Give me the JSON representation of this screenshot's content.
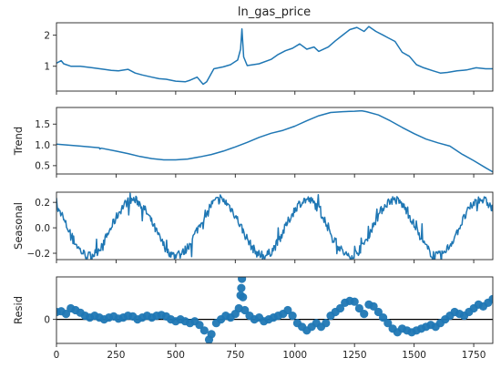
{
  "figure": {
    "title": "ln_gas_price"
  },
  "colors": {
    "series": "#1f77b4",
    "axis": "#222222",
    "zero_line": "#000000",
    "background": "#ffffff"
  },
  "chart_data": [
    {
      "type": "line",
      "name_key": "observed",
      "title": "ln_gas_price",
      "ylabel": "",
      "xlim": [
        0,
        1830
      ],
      "ylim": [
        0.2,
        2.4
      ],
      "yticks": [
        1,
        2
      ],
      "ytick_labels": [
        "1",
        "2"
      ],
      "xticks": [
        0,
        250,
        500,
        750,
        1000,
        1250,
        1500,
        1750
      ],
      "show_xtick_labels": false,
      "points": [
        [
          0,
          1.1
        ],
        [
          20,
          1.18
        ],
        [
          30,
          1.08
        ],
        [
          60,
          1.0
        ],
        [
          100,
          1.0
        ],
        [
          150,
          0.95
        ],
        [
          200,
          0.9
        ],
        [
          230,
          0.87
        ],
        [
          260,
          0.85
        ],
        [
          300,
          0.9
        ],
        [
          330,
          0.78
        ],
        [
          360,
          0.72
        ],
        [
          400,
          0.65
        ],
        [
          430,
          0.6
        ],
        [
          460,
          0.58
        ],
        [
          500,
          0.52
        ],
        [
          540,
          0.5
        ],
        [
          560,
          0.55
        ],
        [
          590,
          0.65
        ],
        [
          615,
          0.42
        ],
        [
          630,
          0.5
        ],
        [
          660,
          0.92
        ],
        [
          700,
          0.98
        ],
        [
          730,
          1.05
        ],
        [
          760,
          1.2
        ],
        [
          772,
          1.55
        ],
        [
          778,
          2.2
        ],
        [
          785,
          1.3
        ],
        [
          800,
          1.02
        ],
        [
          850,
          1.08
        ],
        [
          900,
          1.22
        ],
        [
          930,
          1.38
        ],
        [
          960,
          1.5
        ],
        [
          990,
          1.58
        ],
        [
          1020,
          1.72
        ],
        [
          1050,
          1.55
        ],
        [
          1080,
          1.62
        ],
        [
          1100,
          1.48
        ],
        [
          1140,
          1.62
        ],
        [
          1170,
          1.82
        ],
        [
          1200,
          2.0
        ],
        [
          1230,
          2.18
        ],
        [
          1260,
          2.25
        ],
        [
          1290,
          2.12
        ],
        [
          1310,
          2.28
        ],
        [
          1340,
          2.12
        ],
        [
          1370,
          2.0
        ],
        [
          1390,
          1.92
        ],
        [
          1420,
          1.8
        ],
        [
          1450,
          1.45
        ],
        [
          1480,
          1.32
        ],
        [
          1510,
          1.05
        ],
        [
          1540,
          0.95
        ],
        [
          1580,
          0.85
        ],
        [
          1610,
          0.78
        ],
        [
          1640,
          0.8
        ],
        [
          1680,
          0.85
        ],
        [
          1720,
          0.88
        ],
        [
          1760,
          0.95
        ],
        [
          1800,
          0.92
        ],
        [
          1830,
          0.92
        ]
      ]
    },
    {
      "type": "line",
      "name_key": "trend",
      "ylabel": "Trend",
      "xlim": [
        0,
        1830
      ],
      "ylim": [
        0.3,
        1.9
      ],
      "yticks": [
        0.5,
        1.0,
        1.5
      ],
      "ytick_labels": [
        "0.5",
        "1.0",
        "1.5"
      ],
      "xticks": [
        0,
        250,
        500,
        750,
        1000,
        1250,
        1500,
        1750
      ],
      "show_xtick_labels": false,
      "points": [
        [
          0,
          1.02
        ],
        [
          100,
          0.97
        ],
        [
          180,
          0.93
        ],
        [
          182,
          0.9
        ],
        [
          188,
          0.92
        ],
        [
          250,
          0.85
        ],
        [
          300,
          0.79
        ],
        [
          350,
          0.72
        ],
        [
          400,
          0.67
        ],
        [
          450,
          0.64
        ],
        [
          500,
          0.64
        ],
        [
          550,
          0.66
        ],
        [
          600,
          0.71
        ],
        [
          650,
          0.77
        ],
        [
          700,
          0.85
        ],
        [
          750,
          0.95
        ],
        [
          800,
          1.06
        ],
        [
          850,
          1.18
        ],
        [
          900,
          1.28
        ],
        [
          950,
          1.35
        ],
        [
          1000,
          1.45
        ],
        [
          1050,
          1.58
        ],
        [
          1100,
          1.7
        ],
        [
          1150,
          1.78
        ],
        [
          1200,
          1.8
        ],
        [
          1250,
          1.81
        ],
        [
          1280,
          1.82
        ],
        [
          1300,
          1.8
        ],
        [
          1350,
          1.72
        ],
        [
          1400,
          1.58
        ],
        [
          1450,
          1.42
        ],
        [
          1500,
          1.27
        ],
        [
          1550,
          1.14
        ],
        [
          1600,
          1.05
        ],
        [
          1650,
          0.97
        ],
        [
          1700,
          0.78
        ],
        [
          1750,
          0.62
        ],
        [
          1800,
          0.45
        ],
        [
          1830,
          0.35
        ]
      ]
    },
    {
      "type": "line",
      "name_key": "seasonal",
      "ylabel": "Seasonal",
      "xlim": [
        0,
        1830
      ],
      "ylim": [
        -0.25,
        0.28
      ],
      "yticks": [
        -0.2,
        0.0,
        0.2
      ],
      "ytick_labels": [
        "−0.2",
        "0.0",
        "0.2"
      ],
      "xticks": [
        0,
        250,
        500,
        750,
        1000,
        1250,
        1500,
        1750
      ],
      "show_xtick_labels": false,
      "generator": {
        "period": 365,
        "phase_peak": 320,
        "amplitude": 0.22,
        "noise": 0.035,
        "step": 3
      }
    },
    {
      "type": "scatter",
      "name_key": "resid",
      "ylabel": "Resid",
      "xlim": [
        0,
        1830
      ],
      "ylim": [
        -0.65,
        1.15
      ],
      "yticks": [
        0
      ],
      "ytick_labels": [
        "0"
      ],
      "xticks": [
        0,
        250,
        500,
        750,
        1000,
        1250,
        1500,
        1750
      ],
      "xtick_labels": [
        "0",
        "250",
        "500",
        "750",
        "1000",
        "1250",
        "1500",
        "1750"
      ],
      "show_xtick_labels": true,
      "zero_line": true,
      "points": [
        [
          0,
          0.2
        ],
        [
          20,
          0.22
        ],
        [
          40,
          0.15
        ],
        [
          60,
          0.3
        ],
        [
          80,
          0.25
        ],
        [
          100,
          0.18
        ],
        [
          120,
          0.1
        ],
        [
          140,
          0.05
        ],
        [
          160,
          0.1
        ],
        [
          180,
          0.05
        ],
        [
          200,
          0.0
        ],
        [
          220,
          0.05
        ],
        [
          240,
          0.08
        ],
        [
          260,
          0.02
        ],
        [
          280,
          0.05
        ],
        [
          300,
          0.1
        ],
        [
          320,
          0.08
        ],
        [
          340,
          0.0
        ],
        [
          360,
          0.05
        ],
        [
          380,
          0.1
        ],
        [
          400,
          0.05
        ],
        [
          420,
          0.1
        ],
        [
          440,
          0.12
        ],
        [
          460,
          0.08
        ],
        [
          480,
          0.0
        ],
        [
          500,
          -0.05
        ],
        [
          520,
          0.0
        ],
        [
          540,
          -0.05
        ],
        [
          560,
          -0.1
        ],
        [
          580,
          -0.05
        ],
        [
          600,
          -0.15
        ],
        [
          620,
          -0.3
        ],
        [
          640,
          -0.55
        ],
        [
          650,
          -0.4
        ],
        [
          670,
          -0.1
        ],
        [
          690,
          0.0
        ],
        [
          710,
          0.1
        ],
        [
          730,
          0.05
        ],
        [
          750,
          0.15
        ],
        [
          765,
          0.3
        ],
        [
          772,
          0.65
        ],
        [
          775,
          0.85
        ],
        [
          778,
          1.1
        ],
        [
          782,
          0.6
        ],
        [
          790,
          0.25
        ],
        [
          810,
          0.1
        ],
        [
          830,
          0.0
        ],
        [
          850,
          0.05
        ],
        [
          870,
          -0.05
        ],
        [
          890,
          0.0
        ],
        [
          910,
          0.05
        ],
        [
          930,
          0.1
        ],
        [
          950,
          0.15
        ],
        [
          970,
          0.25
        ],
        [
          990,
          0.1
        ],
        [
          1010,
          -0.1
        ],
        [
          1030,
          -0.2
        ],
        [
          1050,
          -0.3
        ],
        [
          1070,
          -0.2
        ],
        [
          1090,
          -0.1
        ],
        [
          1110,
          -0.2
        ],
        [
          1130,
          -0.1
        ],
        [
          1150,
          0.1
        ],
        [
          1170,
          0.2
        ],
        [
          1190,
          0.3
        ],
        [
          1210,
          0.45
        ],
        [
          1230,
          0.5
        ],
        [
          1250,
          0.48
        ],
        [
          1270,
          0.3
        ],
        [
          1290,
          0.15
        ],
        [
          1310,
          0.4
        ],
        [
          1330,
          0.35
        ],
        [
          1350,
          0.2
        ],
        [
          1370,
          0.05
        ],
        [
          1390,
          -0.1
        ],
        [
          1410,
          -0.25
        ],
        [
          1430,
          -0.35
        ],
        [
          1450,
          -0.25
        ],
        [
          1470,
          -0.3
        ],
        [
          1490,
          -0.35
        ],
        [
          1510,
          -0.3
        ],
        [
          1530,
          -0.25
        ],
        [
          1550,
          -0.2
        ],
        [
          1570,
          -0.15
        ],
        [
          1590,
          -0.2
        ],
        [
          1610,
          -0.1
        ],
        [
          1630,
          0.0
        ],
        [
          1650,
          0.1
        ],
        [
          1670,
          0.2
        ],
        [
          1690,
          0.15
        ],
        [
          1710,
          0.1
        ],
        [
          1730,
          0.2
        ],
        [
          1750,
          0.3
        ],
        [
          1770,
          0.4
        ],
        [
          1790,
          0.35
        ],
        [
          1810,
          0.45
        ],
        [
          1830,
          0.55
        ]
      ]
    }
  ]
}
